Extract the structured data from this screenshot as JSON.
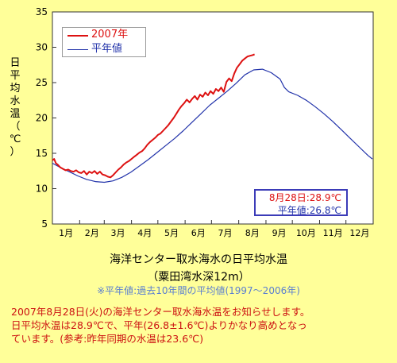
{
  "chart_data": {
    "type": "line",
    "ylabel_chars": [
      "日",
      "平",
      "均",
      "水",
      "温",
      "（",
      "℃",
      "）"
    ],
    "ylim": [
      5,
      35
    ],
    "yticks": [
      5,
      10,
      15,
      20,
      25,
      30,
      35
    ],
    "months": [
      "1月",
      "2月",
      "3月",
      "4月",
      "5月",
      "6月",
      "7月",
      "8月",
      "9月",
      "10月",
      "11月",
      "12月"
    ],
    "grid": false,
    "legend_position": "top-left",
    "series": [
      {
        "name": "2007年",
        "color": "#dd1111",
        "day_values": [
          [
            1,
            14.0
          ],
          [
            3,
            14.2
          ],
          [
            5,
            13.6
          ],
          [
            7,
            13.4
          ],
          [
            10,
            13.0
          ],
          [
            13,
            12.8
          ],
          [
            16,
            12.6
          ],
          [
            19,
            12.7
          ],
          [
            22,
            12.5
          ],
          [
            25,
            12.4
          ],
          [
            28,
            12.6
          ],
          [
            31,
            12.3
          ],
          [
            34,
            12.2
          ],
          [
            37,
            12.5
          ],
          [
            40,
            12.0
          ],
          [
            43,
            12.4
          ],
          [
            46,
            12.2
          ],
          [
            49,
            12.5
          ],
          [
            52,
            12.1
          ],
          [
            55,
            12.4
          ],
          [
            58,
            12.0
          ],
          [
            61,
            11.9
          ],
          [
            64,
            11.7
          ],
          [
            67,
            11.6
          ],
          [
            70,
            11.9
          ],
          [
            73,
            12.3
          ],
          [
            76,
            12.7
          ],
          [
            79,
            13.0
          ],
          [
            82,
            13.4
          ],
          [
            85,
            13.7
          ],
          [
            88,
            13.9
          ],
          [
            91,
            14.2
          ],
          [
            94,
            14.5
          ],
          [
            97,
            14.8
          ],
          [
            100,
            15.1
          ],
          [
            103,
            15.3
          ],
          [
            106,
            15.7
          ],
          [
            109,
            16.2
          ],
          [
            112,
            16.6
          ],
          [
            115,
            16.9
          ],
          [
            118,
            17.2
          ],
          [
            121,
            17.6
          ],
          [
            124,
            17.8
          ],
          [
            127,
            18.2
          ],
          [
            130,
            18.6
          ],
          [
            133,
            19.0
          ],
          [
            136,
            19.5
          ],
          [
            139,
            20.0
          ],
          [
            142,
            20.6
          ],
          [
            145,
            21.2
          ],
          [
            148,
            21.7
          ],
          [
            151,
            22.1
          ],
          [
            154,
            22.6
          ],
          [
            157,
            22.2
          ],
          [
            160,
            22.7
          ],
          [
            163,
            23.1
          ],
          [
            166,
            22.6
          ],
          [
            169,
            23.3
          ],
          [
            172,
            23.0
          ],
          [
            175,
            23.6
          ],
          [
            178,
            23.2
          ],
          [
            181,
            23.8
          ],
          [
            184,
            23.4
          ],
          [
            187,
            24.1
          ],
          [
            190,
            23.8
          ],
          [
            193,
            24.3
          ],
          [
            196,
            23.7
          ],
          [
            199,
            25.1
          ],
          [
            202,
            25.6
          ],
          [
            205,
            25.2
          ],
          [
            208,
            26.3
          ],
          [
            211,
            27.1
          ],
          [
            214,
            27.6
          ],
          [
            217,
            28.1
          ],
          [
            220,
            28.4
          ],
          [
            223,
            28.7
          ],
          [
            226,
            28.8
          ],
          [
            229,
            28.9
          ],
          [
            231,
            29.0
          ]
        ]
      },
      {
        "name": "平年値",
        "color": "#2233aa",
        "day_values": [
          [
            1,
            13.6
          ],
          [
            10,
            13.0
          ],
          [
            20,
            12.4
          ],
          [
            30,
            11.8
          ],
          [
            40,
            11.3
          ],
          [
            50,
            11.0
          ],
          [
            60,
            10.9
          ],
          [
            70,
            11.1
          ],
          [
            80,
            11.6
          ],
          [
            90,
            12.3
          ],
          [
            100,
            13.2
          ],
          [
            110,
            14.1
          ],
          [
            120,
            15.1
          ],
          [
            130,
            16.1
          ],
          [
            140,
            17.1
          ],
          [
            150,
            18.2
          ],
          [
            160,
            19.4
          ],
          [
            170,
            20.6
          ],
          [
            180,
            21.8
          ],
          [
            190,
            22.8
          ],
          [
            200,
            23.8
          ],
          [
            210,
            24.9
          ],
          [
            220,
            26.1
          ],
          [
            230,
            26.8
          ],
          [
            240,
            26.9
          ],
          [
            250,
            26.4
          ],
          [
            260,
            25.5
          ],
          [
            265,
            24.3
          ],
          [
            270,
            23.7
          ],
          [
            280,
            23.2
          ],
          [
            290,
            22.5
          ],
          [
            300,
            21.6
          ],
          [
            310,
            20.6
          ],
          [
            320,
            19.5
          ],
          [
            330,
            18.3
          ],
          [
            340,
            17.1
          ],
          [
            350,
            15.9
          ],
          [
            360,
            14.7
          ],
          [
            365,
            14.2
          ]
        ]
      }
    ]
  },
  "legend": {
    "items": [
      {
        "label": "2007年",
        "color": "#dd1111"
      },
      {
        "label": "平年値",
        "color": "#2233aa"
      }
    ]
  },
  "annotation": {
    "line1": "8月28日:28.9℃",
    "line2": "平年値:26.8℃",
    "line1_color": "#dd1111",
    "line2_color": "#2233aa"
  },
  "caption": {
    "title": "海洋センター取水海水の日平均水温",
    "subtitle": "（粟田湾水深12m）",
    "note": "※平年値:過去10年間の平均値(1997～2006年)"
  },
  "bottom_text": {
    "line1": "2007年8月28日(火)の海洋センター取水海水温をお知らせします。",
    "line2": "日平均水温は28.9℃で、平年(26.8±1.6℃)よりかなり高めとなっ",
    "line3": "ています。(参考:昨年同期の水温は23.6℃)"
  }
}
